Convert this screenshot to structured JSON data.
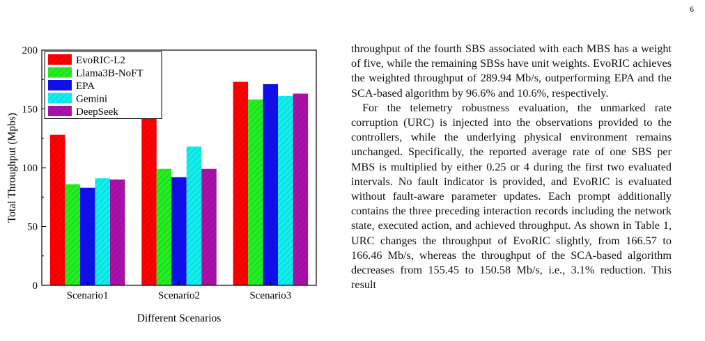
{
  "page_number": "6",
  "paragraphs": [
    "throughput of the fourth SBS associated with each MBS has a weight of five, while the remaining SBSs have unit weights. EvoRIC achieves the weighted throughput of 289.94 Mb/s, outperforming EPA and the SCA-based algorithm by 96.6% and 10.6%, respectively.",
    "For the telemetry robustness evaluation, the unmarked rate corruption (URC) is injected into the observations provided to the controllers, while the underlying physical environment remains unchanged. Specifically, the reported average rate of one SBS per MBS is multiplied by either 0.25 or 4 during the first two evaluated intervals. No fault indicator is provided, and EvoRIC is evaluated without fault-aware parameter updates. Each prompt additionally contains the three preceding interaction records including the network state, executed action, and achieved throughput. As shown in Table 1, URC changes the throughput of EvoRIC slightly, from 166.57 to 166.46 Mb/s, whereas the throughput of the SCA-based algorithm decreases from 155.45 to 150.58 Mb/s, i.e., 3.1% reduction. This result"
  ],
  "chart_data": {
    "type": "bar",
    "categories": [
      "Scenario1",
      "Scenario2",
      "Scenario3"
    ],
    "series": [
      {
        "name": "EvoRIC-L2",
        "values": [
          128,
          148,
          173
        ],
        "color": "#ff0000"
      },
      {
        "name": "Llama3B-NoFT",
        "values": [
          86,
          99,
          158
        ],
        "color": "#22ee22"
      },
      {
        "name": "EPA",
        "values": [
          83,
          92,
          171
        ],
        "color": "#1010ee"
      },
      {
        "name": "Gemini",
        "values": [
          91,
          118,
          161
        ],
        "color": "#11eeee"
      },
      {
        "name": "DeepSeek",
        "values": [
          90,
          99,
          163
        ],
        "color": "#aa11aa"
      }
    ],
    "xlabel": "Different Scenarios",
    "ylabel": "Total Throughput (Mpbs)",
    "ylim": [
      0,
      200
    ],
    "yticks": [
      "0",
      "50",
      "100",
      "150",
      "200"
    ],
    "legend_position": "top-left",
    "hatch": "diagonal",
    "grid": false
  }
}
